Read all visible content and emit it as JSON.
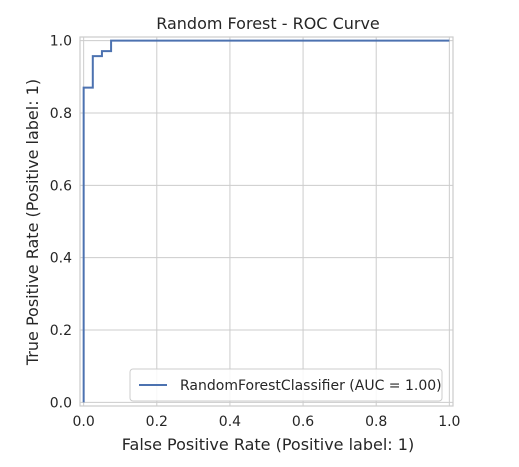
{
  "chart_data": {
    "type": "line",
    "title": "Random Forest - ROC Curve",
    "xlabel": "False Positive Rate (Positive label: 1)",
    "ylabel": "True Positive Rate (Positive label: 1)",
    "xlim": [
      -0.01,
      1.01
    ],
    "ylim": [
      -0.01,
      1.01
    ],
    "x_ticks": [
      0.0,
      0.2,
      0.4,
      0.6,
      0.8,
      1.0
    ],
    "y_ticks": [
      0.0,
      0.2,
      0.4,
      0.6,
      0.8,
      1.0
    ],
    "x_tick_labels": [
      "0.0",
      "0.2",
      "0.4",
      "0.6",
      "0.8",
      "1.0"
    ],
    "y_tick_labels": [
      "0.0",
      "0.2",
      "0.4",
      "0.6",
      "0.8",
      "1.0"
    ],
    "grid": true,
    "legend_position": "lower-right",
    "series": [
      {
        "name": "RandomForestClassifier (AUC = 1.00)",
        "color": "#4c72b0",
        "x": [
          0.0,
          0.0,
          0.0,
          0.025,
          0.025,
          0.05,
          0.05,
          0.075,
          0.075,
          1.0
        ],
        "y": [
          0.0,
          0.87,
          0.87,
          0.87,
          0.957,
          0.957,
          0.971,
          0.971,
          1.0,
          1.0
        ]
      }
    ]
  }
}
